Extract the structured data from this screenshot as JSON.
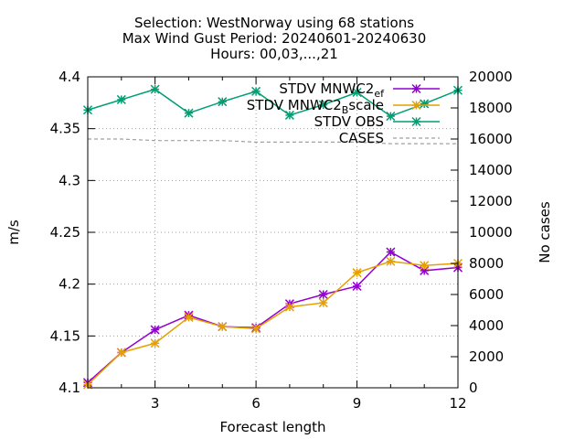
{
  "chart_data": {
    "type": "line",
    "title_lines": [
      "Selection: WestNorway using    68 stations",
      "Max Wind Gust   Period: 20240601-20240630",
      "Hours: 00,03,...,21"
    ],
    "xlabel": "Forecast length",
    "ylabel": "m/s",
    "y2label": "No cases",
    "xlim": [
      1,
      12
    ],
    "ylim": [
      4.1,
      4.4
    ],
    "y2lim": [
      0,
      20000
    ],
    "xticks": [
      3,
      6,
      9,
      12
    ],
    "yticks": [
      4.1,
      4.15,
      4.2,
      4.25,
      4.3,
      4.35,
      4.4
    ],
    "y2ticks": [
      0,
      2000,
      4000,
      6000,
      8000,
      10000,
      12000,
      14000,
      16000,
      18000,
      20000
    ],
    "grid": true,
    "legend_position": "top-right",
    "x": [
      1,
      2,
      3,
      4,
      5,
      6,
      7,
      8,
      9,
      10,
      11,
      12
    ],
    "series": [
      {
        "name": "STDV MNWC2_ef",
        "legend_main": "STDV MNWC2",
        "legend_sub": "ef",
        "axis": "y",
        "color": "#9400d3",
        "dashed": false,
        "values": [
          4.105,
          4.134,
          4.156,
          4.17,
          4.159,
          4.158,
          4.181,
          4.19,
          4.198,
          4.231,
          4.213,
          4.216
        ]
      },
      {
        "name": "STDV MNWC2_Bscale",
        "legend_main": "STDV MNWC2",
        "legend_sub": "B",
        "legend_tail": "scale",
        "axis": "y",
        "color": "#e69f00",
        "dashed": false,
        "values": [
          4.103,
          4.134,
          4.143,
          4.168,
          4.159,
          4.157,
          4.178,
          4.182,
          4.211,
          4.222,
          4.218,
          4.22
        ]
      },
      {
        "name": "STDV OBS",
        "legend_main": "STDV OBS",
        "axis": "y",
        "color": "#009e73",
        "dashed": false,
        "values": [
          4.368,
          4.378,
          4.388,
          4.365,
          4.376,
          4.386,
          4.363,
          4.373,
          4.385,
          4.362,
          4.374,
          4.387
        ]
      },
      {
        "name": "CASES",
        "legend_main": "CASES",
        "axis": "y2",
        "color": "#a0a0a0",
        "dashed": true,
        "values": [
          16000,
          16000,
          15900,
          15900,
          15900,
          15800,
          15800,
          15800,
          15800,
          15700,
          15700,
          15700
        ]
      }
    ]
  }
}
